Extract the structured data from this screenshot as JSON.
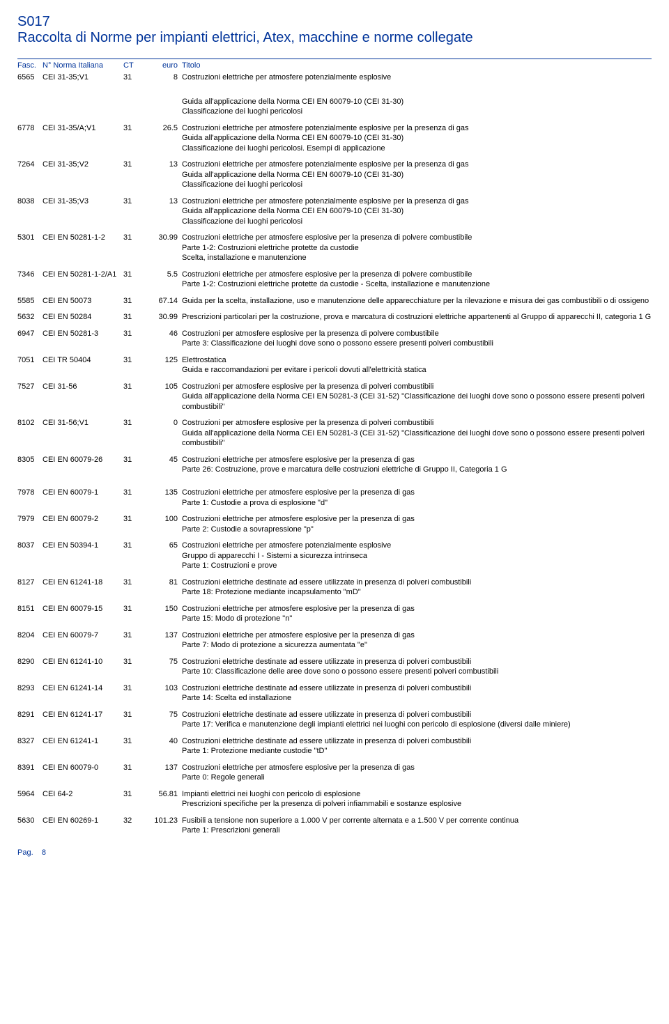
{
  "doc_code": "S017",
  "doc_title": "Raccolta di Norme per impianti elettrici, Atex, macchine e norme collegate",
  "header": {
    "fasc": "Fasc.",
    "norma": "N° Norma Italiana",
    "ct": "CT",
    "euro": "euro",
    "titolo": "Titolo"
  },
  "rows": [
    {
      "fasc": "6565",
      "norma": "CEI 31-35;V1",
      "ct": "31",
      "euro": "8",
      "titolo": "Costruzioni elettriche per atmosfere potenzialmente esplosive",
      "extra": [
        "",
        "Guida all'applicazione della Norma CEI EN 60079-10 (CEI 31-30)",
        "Classificazione dei luoghi pericolosi"
      ],
      "gap": true
    },
    {
      "fasc": "6778",
      "norma": "CEI 31-35/A;V1",
      "ct": "31",
      "euro": "26.5",
      "titolo": "Costruzioni elettriche per atmosfere potenzialmente esplosive per la presenza di gas",
      "extra": [
        "Guida all'applicazione della Norma CEI EN 60079-10 (CEI 31-30)",
        "Classificazione dei luoghi pericolosi. Esempi di applicazione"
      ]
    },
    {
      "fasc": "7264",
      "norma": "CEI 31-35;V2",
      "ct": "31",
      "euro": "13",
      "titolo": "Costruzioni elettriche per atmosfere potenzialmente esplosive per la presenza di gas",
      "extra": [
        "Guida all'applicazione della Norma CEI EN 60079-10 (CEI 31-30)",
        "Classificazione dei luoghi pericolosi"
      ]
    },
    {
      "fasc": "8038",
      "norma": "CEI 31-35;V3",
      "ct": "31",
      "euro": "13",
      "titolo": "Costruzioni elettriche per atmosfere potenzialmente esplosive per la presenza di gas",
      "extra": [
        "Guida all'applicazione della Norma CEI EN 60079-10 (CEI 31-30)",
        "Classificazione dei luoghi pericolosi"
      ]
    },
    {
      "fasc": "5301",
      "norma": "CEI EN 50281-1-2",
      "ct": "31",
      "euro": "30.99",
      "titolo": "Costruzioni elettriche per atmosfere esplosive per la presenza di polvere combustibile",
      "extra": [
        "Parte 1-2: Costruzioni elettriche protette da custodie",
        "Scelta, installazione e manutenzione"
      ]
    },
    {
      "fasc": "7346",
      "norma": "CEI EN 50281-1-2/A1",
      "ct": "31",
      "euro": "5.5",
      "titolo": "Costruzioni elettriche per atmosfere esplosive per la presenza di polvere combustibile",
      "extra": [
        "Parte 1-2: Costruzioni elettriche protette da custodie - Scelta, installazione e manutenzione"
      ]
    },
    {
      "fasc": "5585",
      "norma": "CEI EN 50073",
      "ct": "31",
      "euro": "67.14",
      "titolo": "Guida per la scelta, installazione, uso e manutenzione delle apparecchiature per la rilevazione e misura dei gas combustibili o di ossigeno",
      "extra": []
    },
    {
      "fasc": "5632",
      "norma": "CEI EN 50284",
      "ct": "31",
      "euro": "30.99",
      "titolo": "Prescrizioni particolari per la costruzione, prova e marcatura di costruzioni elettriche appartenenti al Gruppo di apparecchi II, categoria 1 G",
      "extra": []
    },
    {
      "fasc": "6947",
      "norma": "CEI EN 50281-3",
      "ct": "31",
      "euro": "46",
      "titolo": "Costruzioni  per atmosfere esplosive per la presenza di polvere combustibile",
      "extra": [
        "Parte 3: Classificazione dei luoghi dove sono o possono essere presenti polveri combustibili"
      ]
    },
    {
      "fasc": "7051",
      "norma": "CEI TR 50404",
      "ct": "31",
      "euro": "125",
      "titolo": "Elettrostatica",
      "extra": [
        "Guida e raccomandazioni per evitare i pericoli dovuti all'elettricità statica"
      ]
    },
    {
      "fasc": "7527",
      "norma": "CEI 31-56",
      "ct": "31",
      "euro": "105",
      "titolo": "Costruzioni per atmosfere esplosive per la presenza di polveri combustibili",
      "extra": [
        "Guida all'applicazione della Norma CEI EN 50281-3 (CEI 31-52) \"Classificazione dei luoghi dove sono o possono essere presenti polveri combustibili\""
      ]
    },
    {
      "fasc": "8102",
      "norma": "CEI 31-56;V1",
      "ct": "31",
      "euro": "0",
      "titolo": "Costruzioni per atmosfere esplosive per la presenza di polveri combustibili",
      "extra": [
        "Guida all'applicazione della Norma CEI EN 50281-3 (CEI 31-52) \"Classificazione dei luoghi dove sono o possono essere presenti polveri combustibili\""
      ]
    },
    {
      "fasc": "8305",
      "norma": "CEI EN 60079-26",
      "ct": "31",
      "euro": "45",
      "titolo": "Costruzioni elettriche per atmosfere esplosive per la presenza di gas",
      "extra": [
        "Parte 26: Costruzione, prove e marcatura delle costruzioni elettriche di Gruppo II, Categoria 1 G"
      ]
    },
    {
      "fasc": "7978",
      "norma": "CEI EN 60079-1",
      "ct": "31",
      "euro": "135",
      "titolo": "Costruzioni elettriche per atmosfere esplosive per la presenza di gas",
      "extra": [
        "Parte 1: Custodie a prova di esplosione \"d\""
      ],
      "gap_before": true
    },
    {
      "fasc": "7979",
      "norma": "CEI EN 60079-2",
      "ct": "31",
      "euro": "100",
      "titolo": "Costruzioni elettriche per atmosfere esplosive per la presenza di gas",
      "extra": [
        "Parte 2: Custodie a sovrapressione \"p\""
      ]
    },
    {
      "fasc": "8037",
      "norma": "CEI EN 50394-1",
      "ct": "31",
      "euro": "65",
      "titolo": "Costruzioni elettriche per atmosfere potenzialmente esplosive",
      "extra": [
        "Gruppo di apparecchi I - Sistemi a sicurezza intrinseca",
        "Parte 1: Costruzioni e prove"
      ]
    },
    {
      "fasc": "8127",
      "norma": "CEI EN 61241-18",
      "ct": "31",
      "euro": "81",
      "titolo": "Costruzioni elettriche destinate ad essere utilizzate in presenza di polveri combustibili",
      "extra": [
        "Parte 18: Protezione mediante incapsulamento \"mD\""
      ]
    },
    {
      "fasc": "8151",
      "norma": "CEI EN 60079-15",
      "ct": "31",
      "euro": "150",
      "titolo": "Costruzioni elettriche per atmosfere esplosive per la presenza di gas",
      "extra": [
        "Parte 15: Modo di protezione \"n\""
      ]
    },
    {
      "fasc": "8204",
      "norma": "CEI EN 60079-7",
      "ct": "31",
      "euro": "137",
      "titolo": "Costruzioni elettriche per atmosfere esplosive per la presenza di gas",
      "extra": [
        "Parte 7: Modo di protezione a sicurezza aumentata \"e\""
      ]
    },
    {
      "fasc": "8290",
      "norma": "CEI EN 61241-10",
      "ct": "31",
      "euro": "75",
      "titolo": "Costruzioni elettriche destinate ad essere utilizzate in presenza di polveri combustibili",
      "extra": [
        "Parte 10: Classificazione delle aree dove sono o possono essere presenti polveri combustibili"
      ]
    },
    {
      "fasc": "8293",
      "norma": "CEI EN 61241-14",
      "ct": "31",
      "euro": "103",
      "titolo": "Costruzioni elettriche destinate ad essere utilizzate in presenza di polveri combustibili",
      "extra": [
        "Parte 14: Scelta ed installazione"
      ]
    },
    {
      "fasc": "8291",
      "norma": "CEI EN 61241-17",
      "ct": "31",
      "euro": "75",
      "titolo": "Costruzioni elettriche destinate ad essere utilizzate in presenza di polveri combustibili",
      "extra": [
        "Parte 17: Verifica e manutenzione degli impianti elettrici nei luoghi con pericolo di esplosione (diversi dalle miniere)"
      ]
    },
    {
      "fasc": "8327",
      "norma": "CEI EN 61241-1",
      "ct": "31",
      "euro": "40",
      "titolo": "Costruzioni elettriche destinate ad essere utilizzate in presenza di polveri combustibili",
      "extra": [
        "Parte 1: Protezione mediante custodie \"tD\""
      ]
    },
    {
      "fasc": "8391",
      "norma": "CEI EN 60079-0",
      "ct": "31",
      "euro": "137",
      "titolo": "Costruzioni elettriche per atmosfere esplosive per la presenza di gas",
      "extra": [
        "Parte 0: Regole generali"
      ]
    },
    {
      "fasc": "5964",
      "norma": "CEI 64-2",
      "ct": "31",
      "euro": "56.81",
      "titolo": "Impianti elettrici nei luoghi con pericolo di esplosione",
      "extra": [
        "Prescrizioni specifiche per la presenza di polveri infiammabili e sostanze esplosive"
      ]
    },
    {
      "fasc": "5630",
      "norma": "CEI EN 60269-1",
      "ct": "32",
      "euro": "101.23",
      "titolo": "Fusibili a tensione non superiore a 1.000 V per corrente alternata  e a 1.500 V per corrente continua",
      "extra": [
        "Parte 1: Prescrizioni  generali"
      ]
    }
  ],
  "footer": {
    "pag_label": "Pag.",
    "pag_num": "8"
  }
}
